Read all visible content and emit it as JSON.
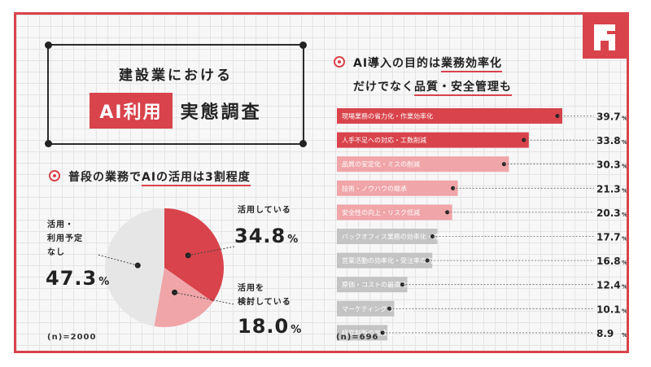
{
  "title": {
    "line1": "建設業における",
    "highlight": "AI利用",
    "rest": "実態調査"
  },
  "left_section": {
    "heading_pre": "普段の業務で",
    "heading_hl": "AIの活用は3割程度"
  },
  "right_section": {
    "heading_line1_pre": "AI導入の目的は",
    "heading_line1_hl": "業務効率化",
    "heading_line2_pre": "だけでなく",
    "heading_line2_hl": "品質・安全管理も"
  },
  "pie_labels": {
    "using": {
      "label": "活用している",
      "value": "34.8",
      "unit": "%"
    },
    "considering": {
      "label1": "活用を",
      "label2": "検討している",
      "value": "18.0",
      "unit": "%"
    },
    "none": {
      "label1": "活用・",
      "label2": "利用予定",
      "label3": "なし",
      "value": "47.3",
      "unit": "%"
    }
  },
  "left_note": "(n)=2000",
  "right_note": "(n)=696",
  "colors": {
    "accent": "#d9434b",
    "pink": "#f0a5a8",
    "gray": "#c4c4c4",
    "pie_gray": "#e6e6e6"
  },
  "chart_data": [
    {
      "type": "pie",
      "categories": [
        "活用している",
        "活用を検討している",
        "活用・利用予定なし"
      ],
      "values": [
        34.8,
        18.0,
        47.3
      ],
      "colors": [
        "#d9434b",
        "#f0a5a8",
        "#e6e6e6"
      ]
    },
    {
      "type": "bar",
      "orientation": "horizontal",
      "categories": [
        "現場業務の省力化・作業効率化",
        "人手不足への対応・工数削減",
        "品質の安定化・ミスの削減",
        "技術・ノウハウの継承",
        "安全性の向上・リスク低減",
        "バックオフィス業務の効率化・標準化",
        "営業活動の効率化・受注率の向上",
        "原価・コストの最適化",
        "マーケティングの高度化",
        "経営判断の高度化・見える化"
      ],
      "values": [
        39.7,
        33.8,
        30.3,
        21.3,
        20.3,
        17.7,
        16.8,
        12.4,
        10.1,
        8.9
      ],
      "unit": "%",
      "colors": [
        "#d9434b",
        "#d9434b",
        "#f0a5a8",
        "#f0a5a8",
        "#f0a5a8",
        "#c4c4c4",
        "#c4c4c4",
        "#c4c4c4",
        "#c4c4c4",
        "#c4c4c4"
      ]
    }
  ]
}
